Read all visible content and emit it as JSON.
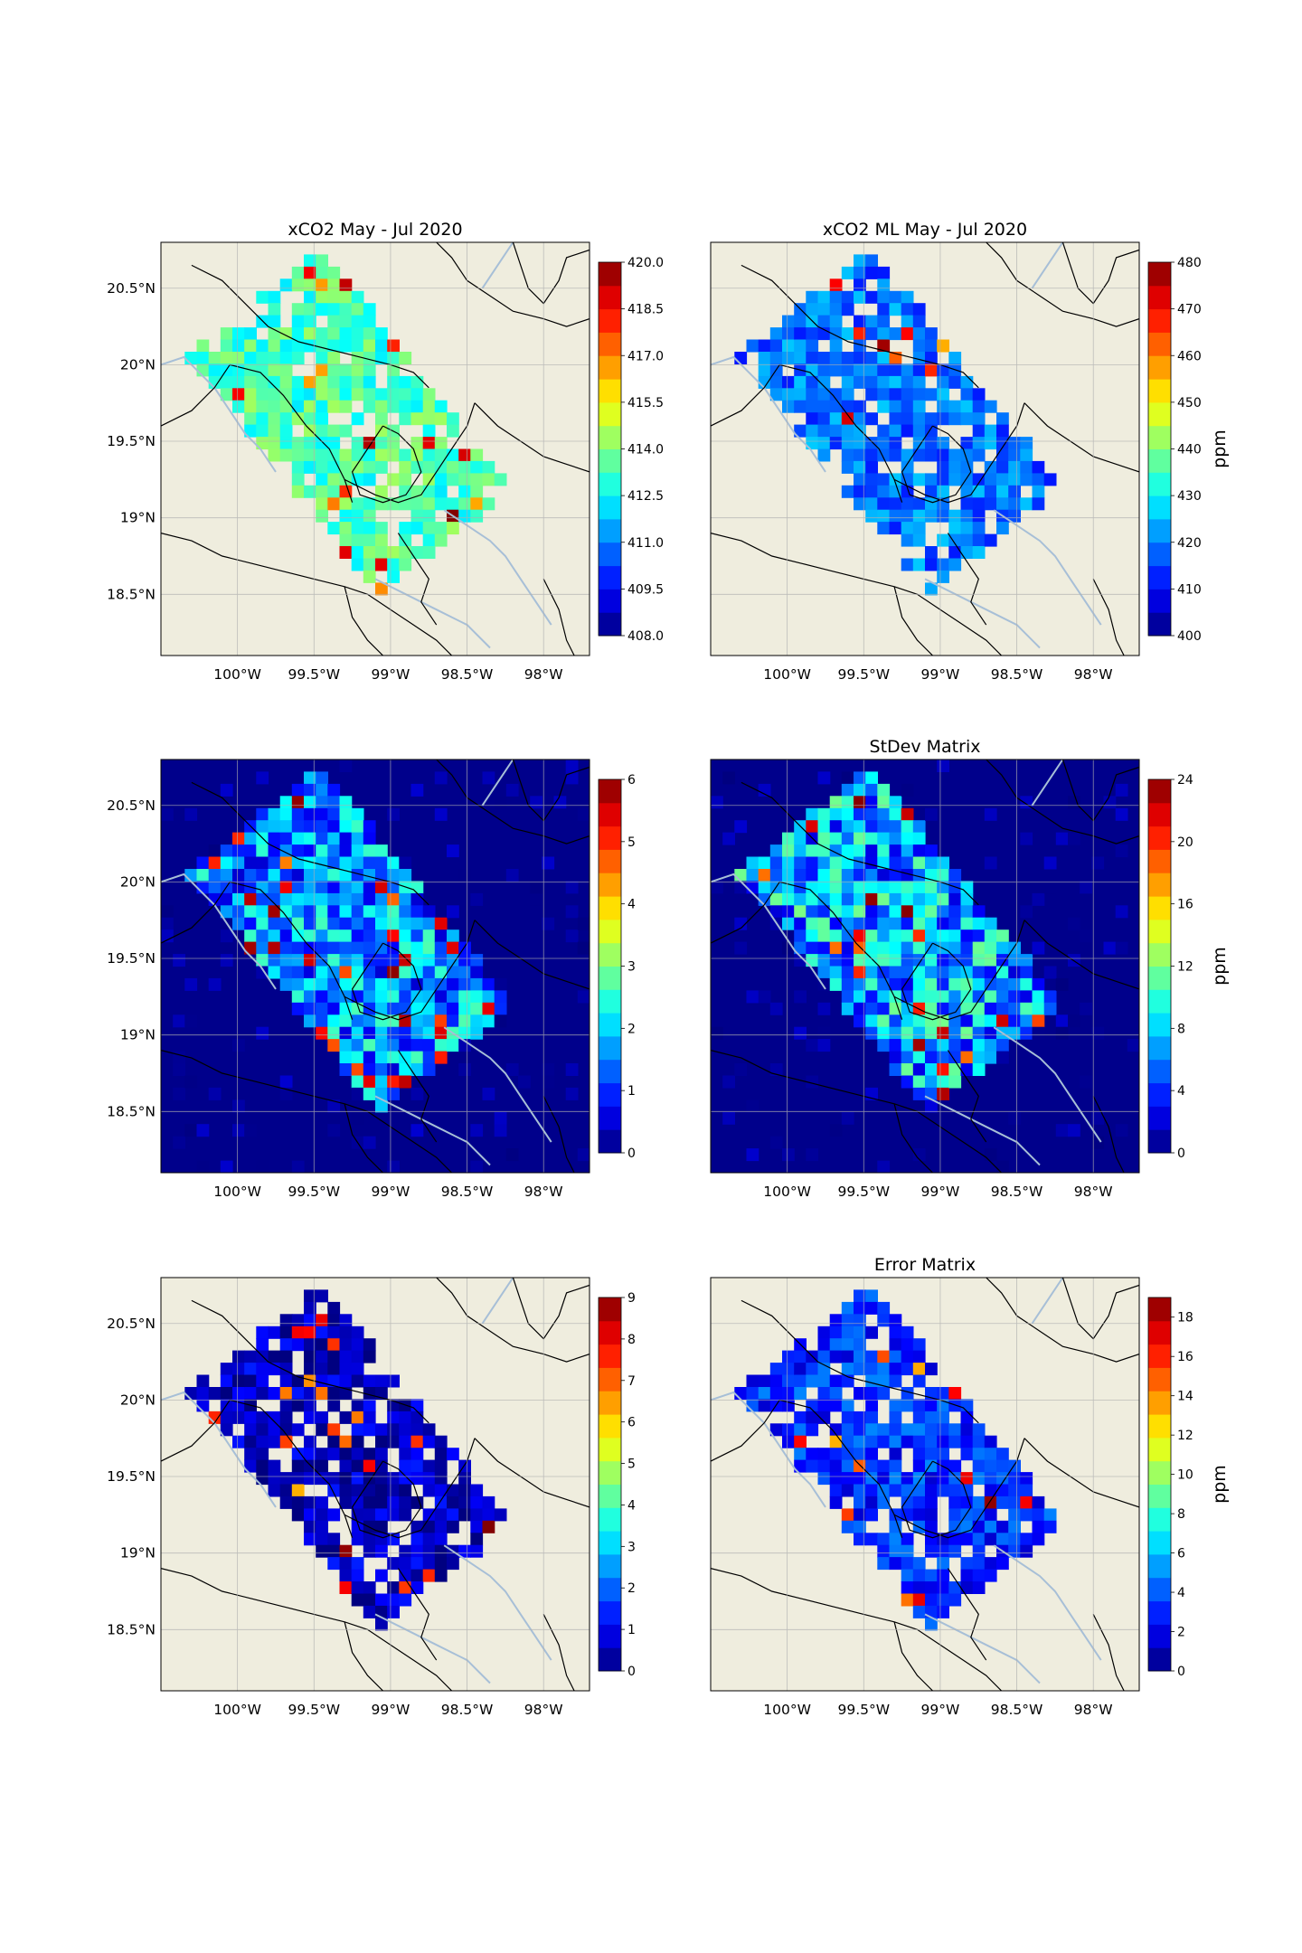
{
  "figure": {
    "x_ticks": [
      "100°W",
      "99.5°W",
      "99°W",
      "98.5°W",
      "98°W"
    ],
    "x_tick_values": [
      -100,
      -99.5,
      -99,
      -98.5,
      -98
    ],
    "y_ticks": [
      "20.5°N",
      "20°N",
      "19.5°N",
      "19°N",
      "18.5°N"
    ],
    "y_tick_values": [
      20.5,
      20,
      19.5,
      19,
      18.5
    ],
    "lon_range": [
      -100.5,
      -97.7
    ],
    "lat_range": [
      18.1,
      20.8
    ],
    "land_color": "#efedde",
    "ocean_fill_color": "#00008b",
    "border_color": "#000000",
    "river_color": "#a7bfd7",
    "grid_color": "#b0b0b0"
  },
  "chart_data": [
    {
      "type": "heatmap",
      "panel": "top-left",
      "title": "xCO2 May - Jul 2020",
      "colormap": "jet",
      "vmin": 408.0,
      "vmax": 420.0,
      "colorbar_ticks": [
        "420.0",
        "418.5",
        "417.0",
        "415.5",
        "414.0",
        "412.5",
        "411.0",
        "409.5",
        "408.0"
      ],
      "colorbar_label": "",
      "background": "land",
      "typical_value": 413.2
    },
    {
      "type": "heatmap",
      "panel": "top-right",
      "title": "xCO2 ML May - Jul 2020",
      "colormap": "jet",
      "vmin": 400,
      "vmax": 480,
      "colorbar_ticks": [
        "480",
        "470",
        "460",
        "450",
        "440",
        "430",
        "420",
        "410",
        "400"
      ],
      "colorbar_label": "ppm",
      "background": "land",
      "typical_value": 418
    },
    {
      "type": "heatmap",
      "panel": "middle-left",
      "title": "",
      "colormap": "jet",
      "vmin": 0,
      "vmax": 6,
      "colorbar_ticks": [
        "6",
        "5",
        "4",
        "3",
        "2",
        "1",
        "0"
      ],
      "colorbar_label": "",
      "background": "filled",
      "typical_value": 1.6
    },
    {
      "type": "heatmap",
      "panel": "middle-right",
      "title": "StDev Matrix",
      "colormap": "jet",
      "vmin": 0,
      "vmax": 24,
      "colorbar_ticks": [
        "24",
        "20",
        "16",
        "12",
        "8",
        "4",
        "0"
      ],
      "colorbar_label": "ppm",
      "background": "filled",
      "typical_value": 7
    },
    {
      "type": "heatmap",
      "panel": "bottom-left",
      "title": "",
      "colormap": "jet",
      "vmin": 0,
      "vmax": 9,
      "colorbar_ticks": [
        "9",
        "8",
        "7",
        "6",
        "5",
        "4",
        "3",
        "2",
        "1",
        "0"
      ],
      "colorbar_label": "",
      "background": "land",
      "typical_value": 0.5
    },
    {
      "type": "heatmap",
      "panel": "bottom-right",
      "title": "Error Matrix",
      "colormap": "jet",
      "vmin": 0,
      "vmax": 19,
      "colorbar_ticks": [
        "18",
        "16",
        "14",
        "12",
        "10",
        "8",
        "6",
        "4",
        "2",
        "0"
      ],
      "colorbar_label": "ppm",
      "background": "land",
      "typical_value": 3
    }
  ]
}
